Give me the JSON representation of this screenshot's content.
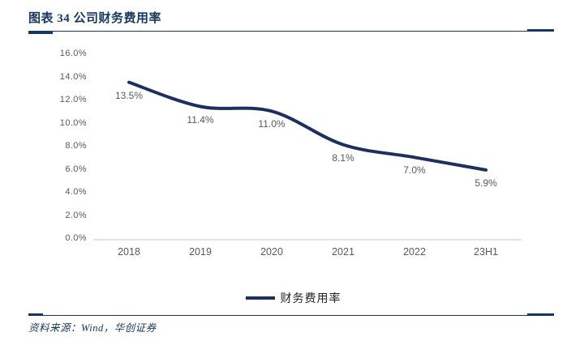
{
  "header": {
    "title": "图表 34 公司财务费用率"
  },
  "chart_data": {
    "type": "line",
    "title": "公司财务费用率",
    "categories": [
      "2018",
      "2019",
      "2020",
      "2021",
      "2022",
      "23H1"
    ],
    "series": [
      {
        "name": "财务费用率",
        "values": [
          13.5,
          11.4,
          11.0,
          8.1,
          7.0,
          5.9
        ]
      }
    ],
    "point_labels": [
      "13.5%",
      "11.4%",
      "11.0%",
      "8.1%",
      "7.0%",
      "5.9%"
    ],
    "xlabel": "",
    "ylabel": "",
    "ylim": [
      0,
      16
    ],
    "yticks": [
      {
        "value": 0,
        "label": "0.0%"
      },
      {
        "value": 2,
        "label": "2.0%"
      },
      {
        "value": 4,
        "label": "4.0%"
      },
      {
        "value": 6,
        "label": "6.0%"
      },
      {
        "value": 8,
        "label": "8.0%"
      },
      {
        "value": 10,
        "label": "10.0%"
      },
      {
        "value": 12,
        "label": "12.0%"
      },
      {
        "value": 14,
        "label": "14.0%"
      },
      {
        "value": 16,
        "label": "16.0%"
      }
    ],
    "grid": "off",
    "legend_position": "bottom",
    "legend": "财务费用率",
    "colors": {
      "line": "#1C2F5E",
      "axis_line": "#D9D9D9",
      "tick_label": "#595959",
      "accent_navy": "#17375E"
    }
  },
  "footer": {
    "source": "资料来源：Wind，华创证券"
  }
}
